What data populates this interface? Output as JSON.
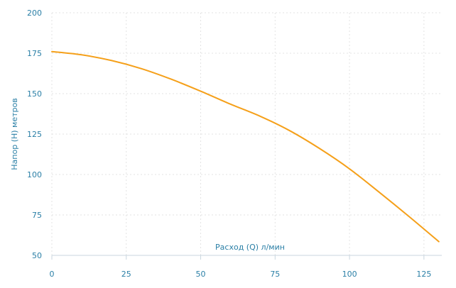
{
  "chart_data": {
    "type": "line",
    "title": "",
    "xlabel": "Расход (Q) л/мин",
    "ylabel": "Напор (H) метров",
    "xlim": [
      0,
      131
    ],
    "ylim": [
      50,
      200
    ],
    "x_ticks": [
      0,
      25,
      50,
      75,
      100,
      125
    ],
    "y_ticks": [
      50,
      75,
      100,
      125,
      150,
      175,
      200
    ],
    "x_tick_labels": [
      "0",
      "25",
      "50",
      "75",
      "100",
      "125"
    ],
    "y_tick_labels": [
      "50",
      "75",
      "100",
      "125",
      "150",
      "175",
      "200"
    ],
    "grid": true,
    "legend": "none",
    "series": [
      {
        "color": "#f5a01a",
        "x": [
          0,
          10,
          20,
          30,
          40,
          50,
          60,
          70,
          80,
          90,
          100,
          110,
          120,
          130
        ],
        "y": [
          176,
          174,
          170.5,
          165.5,
          159,
          151.5,
          143.5,
          136,
          127,
          116,
          103.5,
          89,
          74,
          58.5
        ]
      }
    ]
  }
}
